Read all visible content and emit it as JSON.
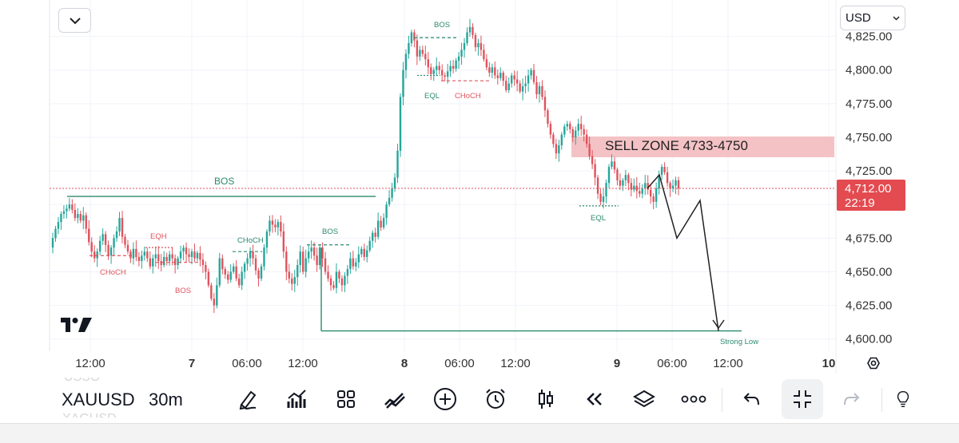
{
  "header": {
    "currency_label": "USD"
  },
  "price_axis": {
    "ticks": [
      "4,825.00",
      "4,800.00",
      "4,775.00",
      "4,750.00",
      "4,725.00",
      "4,675.00",
      "4,650.00",
      "4,625.00",
      "4,600.00"
    ],
    "current_price": "4,712.00",
    "countdown": "22:19"
  },
  "time_axis": {
    "ticks": [
      {
        "label": "12:00",
        "bold": false
      },
      {
        "label": "7",
        "bold": true
      },
      {
        "label": "06:00",
        "bold": false
      },
      {
        "label": "12:00",
        "bold": false
      },
      {
        "label": "8",
        "bold": true
      },
      {
        "label": "06:00",
        "bold": false
      },
      {
        "label": "12:00",
        "bold": false
      },
      {
        "label": "9",
        "bold": true
      },
      {
        "label": "06:00",
        "bold": false
      },
      {
        "label": "12:00",
        "bold": false
      },
      {
        "label": "10",
        "bold": true
      }
    ]
  },
  "annotations": {
    "sell_zone": "SELL ZONE 4733-4750",
    "strong_low": "Strong Low",
    "bos_main": "BOS",
    "bos_left": "BOS",
    "eqh": "EQH",
    "choch_left": "CHoCH",
    "choch_mid": "CHoCH",
    "bos_mid": "BOS",
    "bos_top": "BOS",
    "eql_top": "EQL",
    "choch_top": "CHoCH",
    "eql_right": "EQL"
  },
  "symbol_bar": {
    "symbol": "XAUUSD",
    "interval": "30m",
    "prev_symbol_partial": "USSO",
    "next_symbol_partial": "XAGUSD"
  },
  "toolbar": {
    "icons": [
      "brush-icon",
      "indicators-icon",
      "templates-icon",
      "drawings-icon",
      "add-icon",
      "alert-icon",
      "candles-icon",
      "replay-icon",
      "layers-icon",
      "more-icon",
      "undo-icon",
      "fullscreen-exit-icon",
      "redo-icon",
      "lightbulb-icon"
    ]
  },
  "colors": {
    "up": "#26a69a",
    "up_dark": "#2b8a6e",
    "down": "#e0535d",
    "grid": "#f0f3fa",
    "sell_zone": "#f4c2c5",
    "price_label_bg": "#e34b50",
    "text": "#131722",
    "axis_text": "#333333"
  },
  "chart_data": {
    "type": "candlestick",
    "symbol": "XAUUSD",
    "interval": "30m",
    "y_ticks": [
      4600,
      4625,
      4650,
      4675,
      4700,
      4725,
      4750,
      4775,
      4800,
      4825
    ],
    "ylim": [
      4593,
      4838
    ],
    "last_price": 4712.0,
    "sell_zone": [
      4733,
      4750
    ],
    "strong_low": 4606,
    "projection_path": [
      4712,
      4722,
      4675,
      4703,
      4606
    ],
    "levels": {
      "bos_main": 4706,
      "bos_left_level": 4657,
      "eqh_level": 4668,
      "choch_left_level": 4662,
      "choch_mid_level": 4665,
      "bos_mid_level": 4670,
      "bos_top_level": 4824,
      "eql_top_level": 4796,
      "choch_top_level": 4792,
      "eql_right_level": 4699
    },
    "closes": [
      4675,
      4682,
      4687,
      4693,
      4695,
      4697,
      4700,
      4696,
      4690,
      4693,
      4688,
      4692,
      4682,
      4672,
      4665,
      4660,
      4665,
      4673,
      4678,
      4670,
      4662,
      4668,
      4675,
      4680,
      4690,
      4676,
      4670,
      4665,
      4660,
      4667,
      4661,
      4658,
      4662,
      4665,
      4660,
      4654,
      4660,
      4663,
      4658,
      4655,
      4661,
      4658,
      4663,
      4660,
      4655,
      4660,
      4665,
      4668,
      4663,
      4661,
      4665,
      4660,
      4664,
      4659,
      4655,
      4650,
      4640,
      4630,
      4625,
      4640,
      4660,
      4652,
      4648,
      4644,
      4650,
      4654,
      4645,
      4640,
      4650,
      4656,
      4660,
      4665,
      4660,
      4651,
      4645,
      4654,
      4668,
      4680,
      4688,
      4685,
      4683,
      4687,
      4680,
      4665,
      4650,
      4645,
      4641,
      4646,
      4655,
      4665,
      4650,
      4660,
      4665,
      4668,
      4662,
      4655,
      4668,
      4660,
      4650,
      4645,
      4640,
      4638,
      4650,
      4645,
      4640,
      4647,
      4652,
      4660,
      4654,
      4657,
      4663,
      4667,
      4661,
      4666,
      4673,
      4679,
      4676,
      4688,
      4683,
      4690,
      4700,
      4705,
      4712,
      4720,
      4740,
      4780,
      4800,
      4812,
      4820,
      4828,
      4822,
      4810,
      4815,
      4812,
      4808,
      4802,
      4797,
      4800,
      4803,
      4800,
      4796,
      4795,
      4799,
      4803,
      4801,
      4807,
      4810,
      4815,
      4820,
      4828,
      4832,
      4826,
      4817,
      4820,
      4815,
      4808,
      4802,
      4798,
      4802,
      4796,
      4794,
      4798,
      4792,
      4785,
      4790,
      4796,
      4793,
      4790,
      4784,
      4788,
      4790,
      4796,
      4800,
      4791,
      4782,
      4788,
      4780,
      4770,
      4760,
      4752,
      4745,
      4738,
      4744,
      4752,
      4758,
      4760,
      4756,
      4750,
      4755,
      4760,
      4756,
      4752,
      4745,
      4736,
      4730,
      4720,
      4708,
      4702,
      4706,
      4716,
      4728,
      4732,
      4726,
      4718,
      4714,
      4718,
      4722,
      4716,
      4711,
      4714,
      4710,
      4708,
      4712,
      4716,
      4711,
      4706,
      4702,
      4712,
      4722,
      4728,
      4724,
      4716,
      4712,
      4714,
      4718,
      4712
    ]
  }
}
